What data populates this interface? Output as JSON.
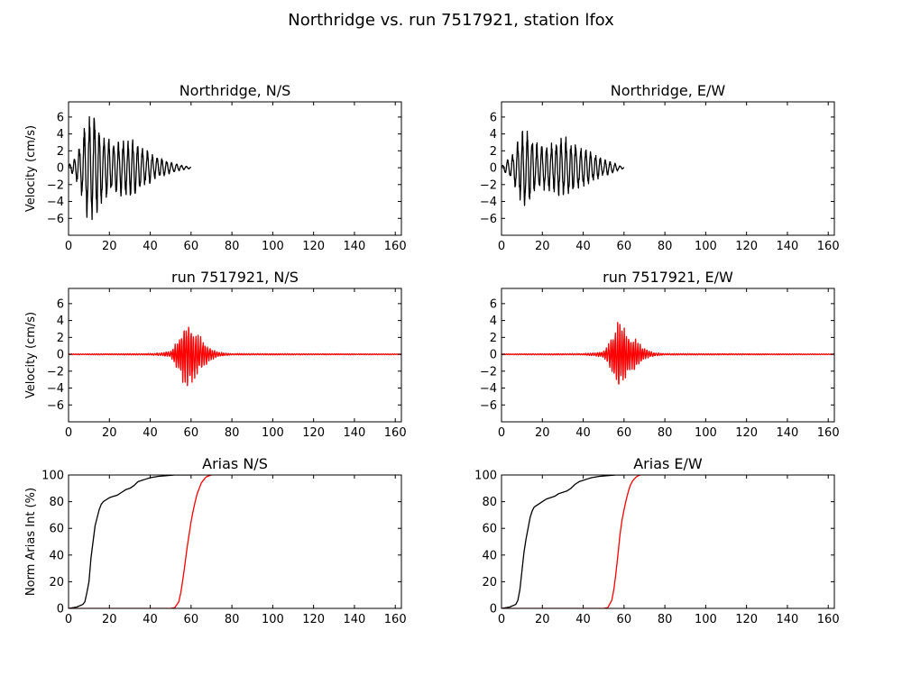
{
  "figure_title": "Northridge vs. run 7517921, station lfox",
  "colors": {
    "recorded": "#000000",
    "simulated": "#ff0000"
  },
  "chart_data": [
    {
      "id": "p0",
      "type": "line",
      "title": "Northridge, N/S",
      "xlabel": "",
      "ylabel": "Velocity (cm/s)",
      "xlim": [
        0,
        163
      ],
      "ylim": [
        -8,
        7.8
      ],
      "xticks": [
        0,
        20,
        40,
        60,
        80,
        100,
        120,
        140,
        160
      ],
      "yticks": [
        -6,
        -4,
        -2,
        0,
        2,
        4,
        6
      ],
      "series": [
        {
          "kind": "recorded-velocity",
          "color": "#000000",
          "x": [
            0,
            1,
            2,
            3,
            4,
            5,
            6,
            7,
            8,
            9,
            10,
            11,
            12,
            13,
            14,
            15,
            16,
            17,
            18,
            19,
            20,
            22,
            24,
            26,
            28,
            30,
            32,
            34,
            36,
            38,
            40,
            42,
            44,
            46,
            48,
            50,
            52,
            54,
            56,
            58,
            60
          ],
          "envelope": [
            0.2,
            0.6,
            0.9,
            1.3,
            1.8,
            2.6,
            3.5,
            4.5,
            5.3,
            5.9,
            6.3,
            6.6,
            6.9,
            6.5,
            5.9,
            5.2,
            4.7,
            4.3,
            4.0,
            3.8,
            3.6,
            3.4,
            3.3,
            3.4,
            3.6,
            3.7,
            3.5,
            3.0,
            2.6,
            2.2,
            1.9,
            1.6,
            1.3,
            1.1,
            0.9,
            0.7,
            0.6,
            0.4,
            0.3,
            0.2,
            0.1
          ],
          "freq": 0.42
        }
      ]
    },
    {
      "id": "p1",
      "type": "line",
      "title": "Northridge, E/W",
      "xlabel": "",
      "ylabel": "",
      "xlim": [
        0,
        163
      ],
      "ylim": [
        -8,
        7.8
      ],
      "xticks": [
        0,
        20,
        40,
        60,
        80,
        100,
        120,
        140,
        160
      ],
      "yticks": [
        -6,
        -4,
        -2,
        0,
        2,
        4,
        6
      ],
      "series": [
        {
          "kind": "recorded-velocity",
          "color": "#000000",
          "x": [
            0,
            1,
            2,
            3,
            4,
            5,
            6,
            7,
            8,
            9,
            10,
            11,
            12,
            13,
            14,
            15,
            16,
            17,
            18,
            19,
            20,
            22,
            24,
            26,
            28,
            30,
            32,
            34,
            36,
            38,
            40,
            42,
            44,
            46,
            48,
            50,
            52,
            54,
            56,
            58,
            60
          ],
          "envelope": [
            0.2,
            0.5,
            0.8,
            1.0,
            1.3,
            1.6,
            2.1,
            2.6,
            3.3,
            4.0,
            4.6,
            5.0,
            5.2,
            4.9,
            4.4,
            3.9,
            3.5,
            3.2,
            3.0,
            2.9,
            2.9,
            3.0,
            3.1,
            3.3,
            3.5,
            3.6,
            3.7,
            3.4,
            3.1,
            2.8,
            2.5,
            2.2,
            1.9,
            1.6,
            1.3,
            1.1,
            0.9,
            0.7,
            0.5,
            0.3,
            0.1
          ],
          "freq": 0.42
        }
      ]
    },
    {
      "id": "p2",
      "type": "line",
      "title": "run 7517921, N/S",
      "xlabel": "",
      "ylabel": "Velocity (cm/s)",
      "xlim": [
        0,
        163
      ],
      "ylim": [
        -8,
        7.8
      ],
      "xticks": [
        0,
        20,
        40,
        60,
        80,
        100,
        120,
        140,
        160
      ],
      "yticks": [
        -6,
        -4,
        -2,
        0,
        2,
        4,
        6
      ],
      "series": [
        {
          "kind": "simulated-velocity",
          "color": "#ff0000",
          "x": [
            0,
            40,
            46,
            50,
            52,
            54,
            55,
            56,
            57,
            58,
            59,
            60,
            61,
            62,
            63,
            64,
            65,
            66,
            67,
            68,
            70,
            72,
            76,
            80,
            163
          ],
          "envelope": [
            0.05,
            0.1,
            0.2,
            0.4,
            1.2,
            2.2,
            2.8,
            3.6,
            4.2,
            3.9,
            3.5,
            3.9,
            3.6,
            3.0,
            2.6,
            2.3,
            2.1,
            1.8,
            1.4,
            1.1,
            0.7,
            0.4,
            0.2,
            0.1,
            0.05
          ],
          "freq": 0.9
        }
      ]
    },
    {
      "id": "p3",
      "type": "line",
      "title": "run 7517921, E/W",
      "xlabel": "",
      "ylabel": "",
      "xlim": [
        0,
        163
      ],
      "ylim": [
        -8,
        7.8
      ],
      "xticks": [
        0,
        20,
        40,
        60,
        80,
        100,
        120,
        140,
        160
      ],
      "yticks": [
        -6,
        -4,
        -2,
        0,
        2,
        4,
        6
      ],
      "series": [
        {
          "kind": "simulated-velocity",
          "color": "#ff0000",
          "x": [
            0,
            40,
            46,
            50,
            52,
            54,
            55,
            56,
            57,
            58,
            59,
            60,
            61,
            62,
            63,
            64,
            65,
            66,
            67,
            68,
            70,
            72,
            76,
            80,
            163
          ],
          "envelope": [
            0.05,
            0.1,
            0.2,
            0.4,
            1.1,
            2.0,
            2.6,
            3.4,
            4.1,
            3.8,
            3.3,
            3.8,
            3.4,
            2.8,
            2.4,
            2.2,
            2.0,
            1.8,
            1.6,
            1.3,
            0.8,
            0.4,
            0.2,
            0.1,
            0.05
          ],
          "freq": 0.9
        }
      ]
    },
    {
      "id": "p4",
      "type": "line",
      "title": "Arias N/S",
      "xlabel": "",
      "ylabel": "Norm Arias Int (%)",
      "xlim": [
        0,
        163
      ],
      "ylim": [
        0,
        100
      ],
      "xticks": [
        0,
        20,
        40,
        60,
        80,
        100,
        120,
        140,
        160
      ],
      "yticks": [
        0,
        20,
        40,
        60,
        80,
        100
      ],
      "series": [
        {
          "kind": "recorded-arias",
          "color": "#000000",
          "x": [
            0,
            4,
            7,
            8,
            9,
            10,
            11,
            12,
            13,
            14,
            15,
            16,
            17,
            18,
            20,
            22,
            24,
            26,
            28,
            30,
            32,
            34,
            36,
            38,
            40,
            44,
            48,
            52,
            58,
            60
          ],
          "y": [
            0,
            1,
            3,
            5,
            12,
            20,
            38,
            50,
            62,
            68,
            74,
            78,
            80,
            81,
            83,
            84,
            85,
            87,
            89,
            90,
            92,
            95,
            96,
            97,
            98,
            99,
            99.5,
            100,
            100,
            100
          ]
        },
        {
          "kind": "simulated-arias",
          "color": "#ff0000",
          "x": [
            0,
            50,
            52,
            54,
            55,
            56,
            57,
            58,
            59,
            60,
            61,
            62,
            63,
            64,
            65,
            66,
            67,
            68,
            70
          ],
          "y": [
            0,
            0,
            0.5,
            5,
            12,
            22,
            33,
            45,
            55,
            65,
            73,
            80,
            86,
            90,
            94,
            96,
            98,
            99,
            100
          ]
        }
      ]
    },
    {
      "id": "p5",
      "type": "line",
      "title": "Arias E/W",
      "xlabel": "",
      "ylabel": "",
      "xlim": [
        0,
        163
      ],
      "ylim": [
        0,
        100
      ],
      "xticks": [
        0,
        20,
        40,
        60,
        80,
        100,
        120,
        140,
        160
      ],
      "yticks": [
        0,
        20,
        40,
        60,
        80,
        100
      ],
      "series": [
        {
          "kind": "recorded-arias",
          "color": "#000000",
          "x": [
            0,
            4,
            7,
            8,
            9,
            10,
            11,
            12,
            13,
            14,
            15,
            16,
            18,
            20,
            22,
            24,
            26,
            28,
            30,
            32,
            34,
            36,
            38,
            40,
            42,
            44,
            48,
            52,
            56,
            60
          ],
          "y": [
            0,
            1,
            3,
            6,
            14,
            28,
            42,
            52,
            60,
            68,
            73,
            76,
            78,
            80,
            82,
            83,
            84,
            86,
            87,
            88,
            90,
            93,
            95,
            96,
            97,
            98,
            99,
            99.5,
            100,
            100
          ]
        },
        {
          "kind": "simulated-arias",
          "color": "#ff0000",
          "x": [
            0,
            50,
            52,
            54,
            55,
            56,
            57,
            58,
            59,
            60,
            61,
            62,
            63,
            64,
            65,
            66,
            67,
            68
          ],
          "y": [
            0,
            0,
            0.5,
            6,
            14,
            26,
            40,
            55,
            66,
            74,
            81,
            87,
            92,
            95,
            97,
            98.5,
            99.5,
            100
          ]
        }
      ]
    }
  ]
}
